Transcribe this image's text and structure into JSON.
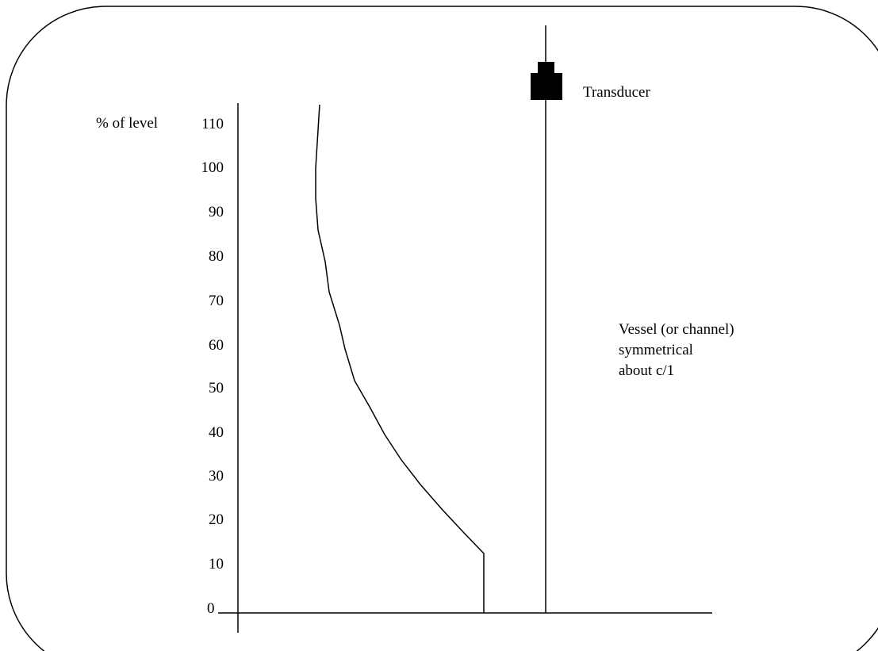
{
  "axis": {
    "label": "% of level",
    "ticks": [
      "110",
      "100",
      "90",
      "80",
      "70",
      "60",
      "50",
      "40",
      "30",
      "20",
      "10",
      "0"
    ]
  },
  "transducer": {
    "label": "Transducer"
  },
  "note": {
    "lines": [
      "Vessel (or channel)",
      "symmetrical",
      "about c/1"
    ]
  },
  "colors": {
    "line": "#000000",
    "transducer": "#000000",
    "background": "#ffffff"
  }
}
